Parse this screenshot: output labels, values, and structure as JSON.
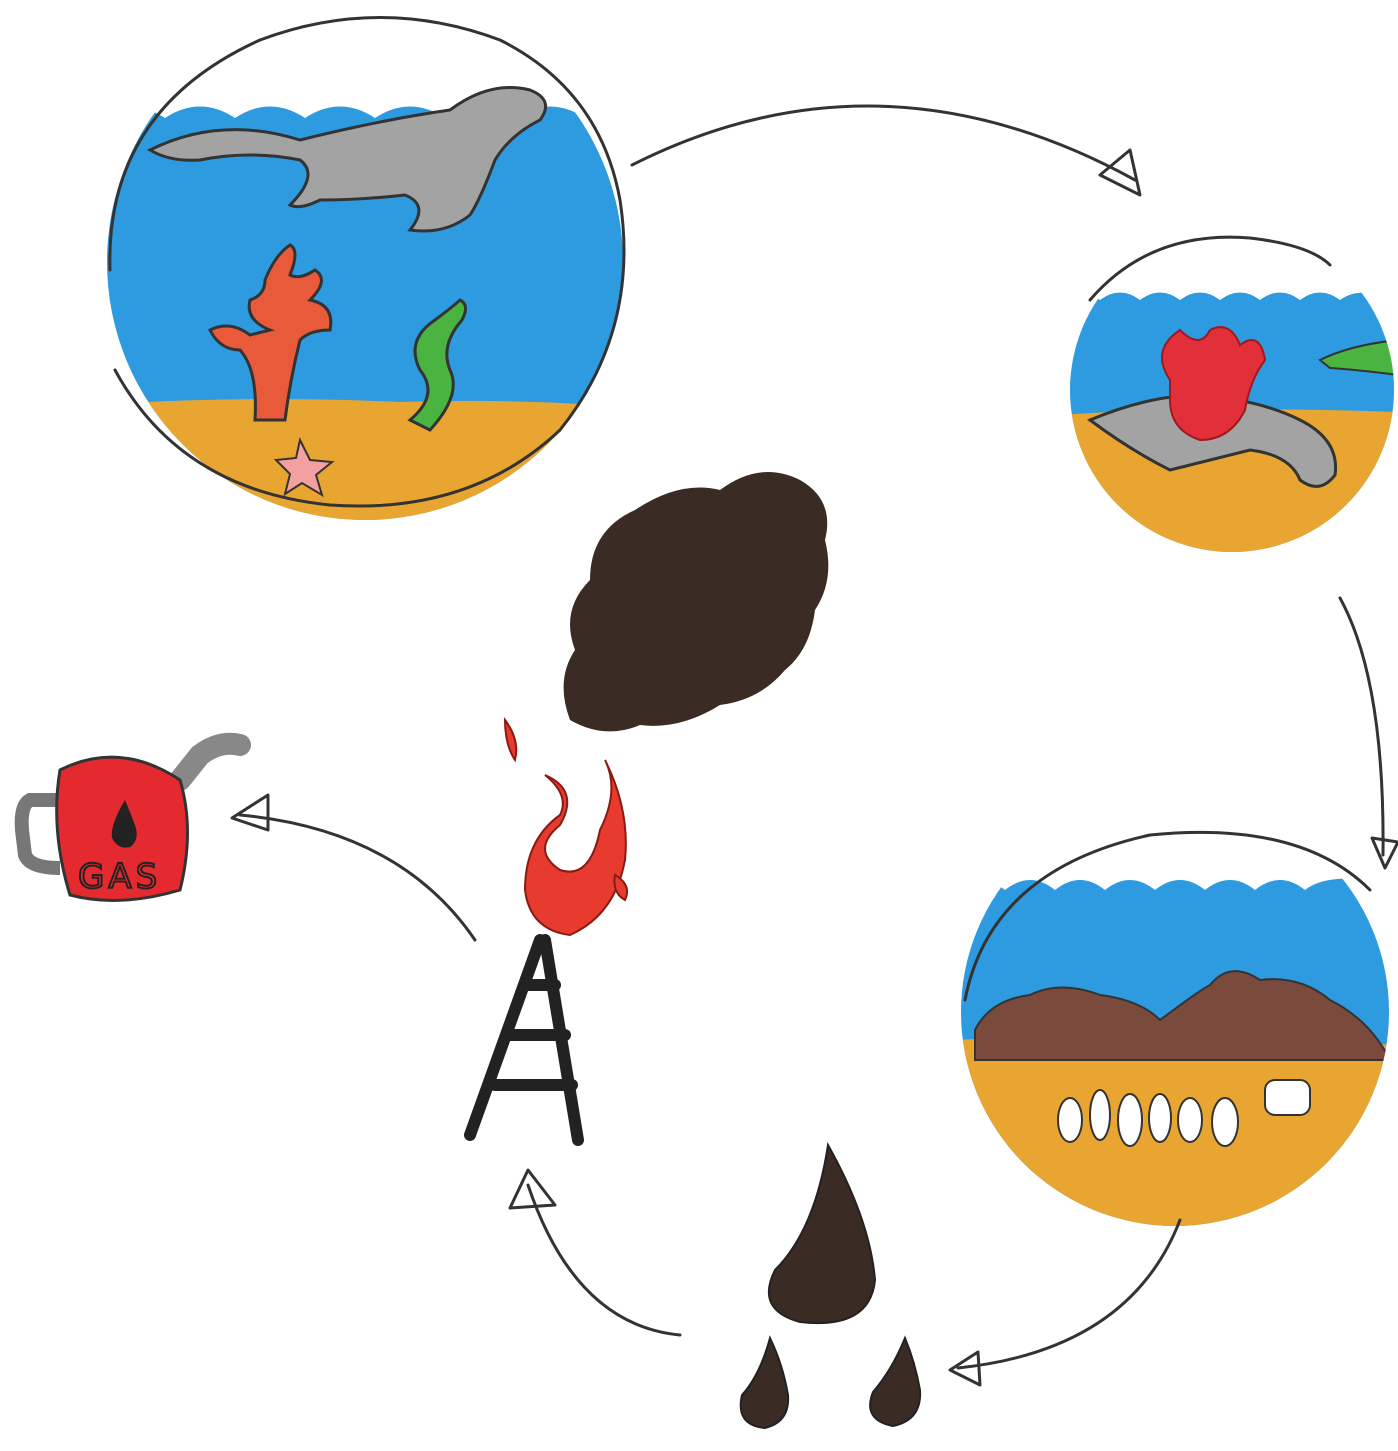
{
  "gas_can": {
    "label": "GAS"
  }
}
